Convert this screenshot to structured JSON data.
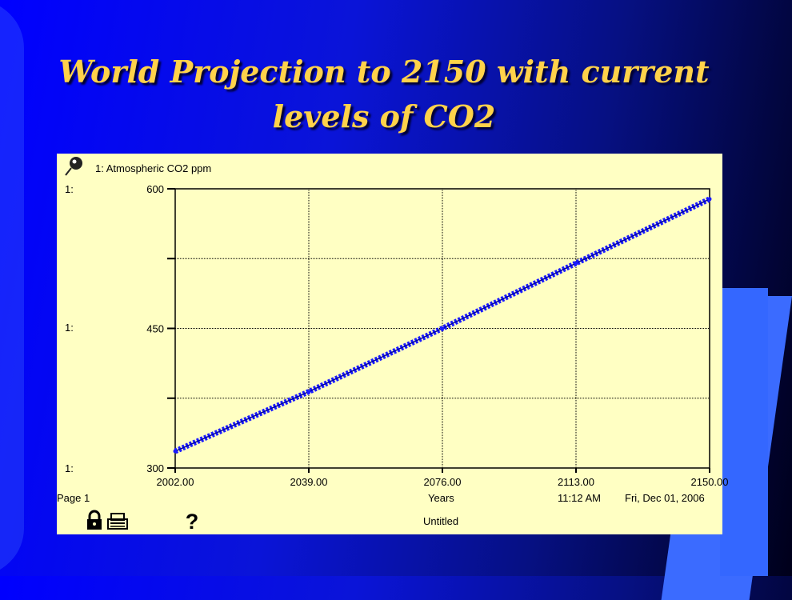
{
  "slide": {
    "title": "World Projection to 2150 with current levels of CO2"
  },
  "graph_window": {
    "series_label": "1: Atmospheric CO2 ppm",
    "axis_prefix": "1:",
    "page_label": "Page 1",
    "time_label": "11:12 AM",
    "date_label": "Fri, Dec 01, 2006",
    "footer_title": "Untitled",
    "icons": [
      "pin-icon",
      "lock-icon",
      "print-icon",
      "help-icon"
    ]
  },
  "chart_data": {
    "type": "line",
    "title": "",
    "xlabel": "Years",
    "ylabel": "",
    "xlim": [
      2002,
      2150
    ],
    "ylim": [
      300,
      600
    ],
    "x_ticks": [
      "2002.00",
      "2039.00",
      "2076.00",
      "2113.00",
      "2150.00"
    ],
    "y_ticks": [
      "600",
      "450",
      "300"
    ],
    "grid": true,
    "series": [
      {
        "name": "1: Atmospheric CO2 ppm",
        "color": "#1a1aff",
        "x": [
          2002,
          2039,
          2076,
          2113,
          2150
        ],
        "values": [
          318,
          382,
          450,
          520,
          589
        ]
      }
    ]
  }
}
